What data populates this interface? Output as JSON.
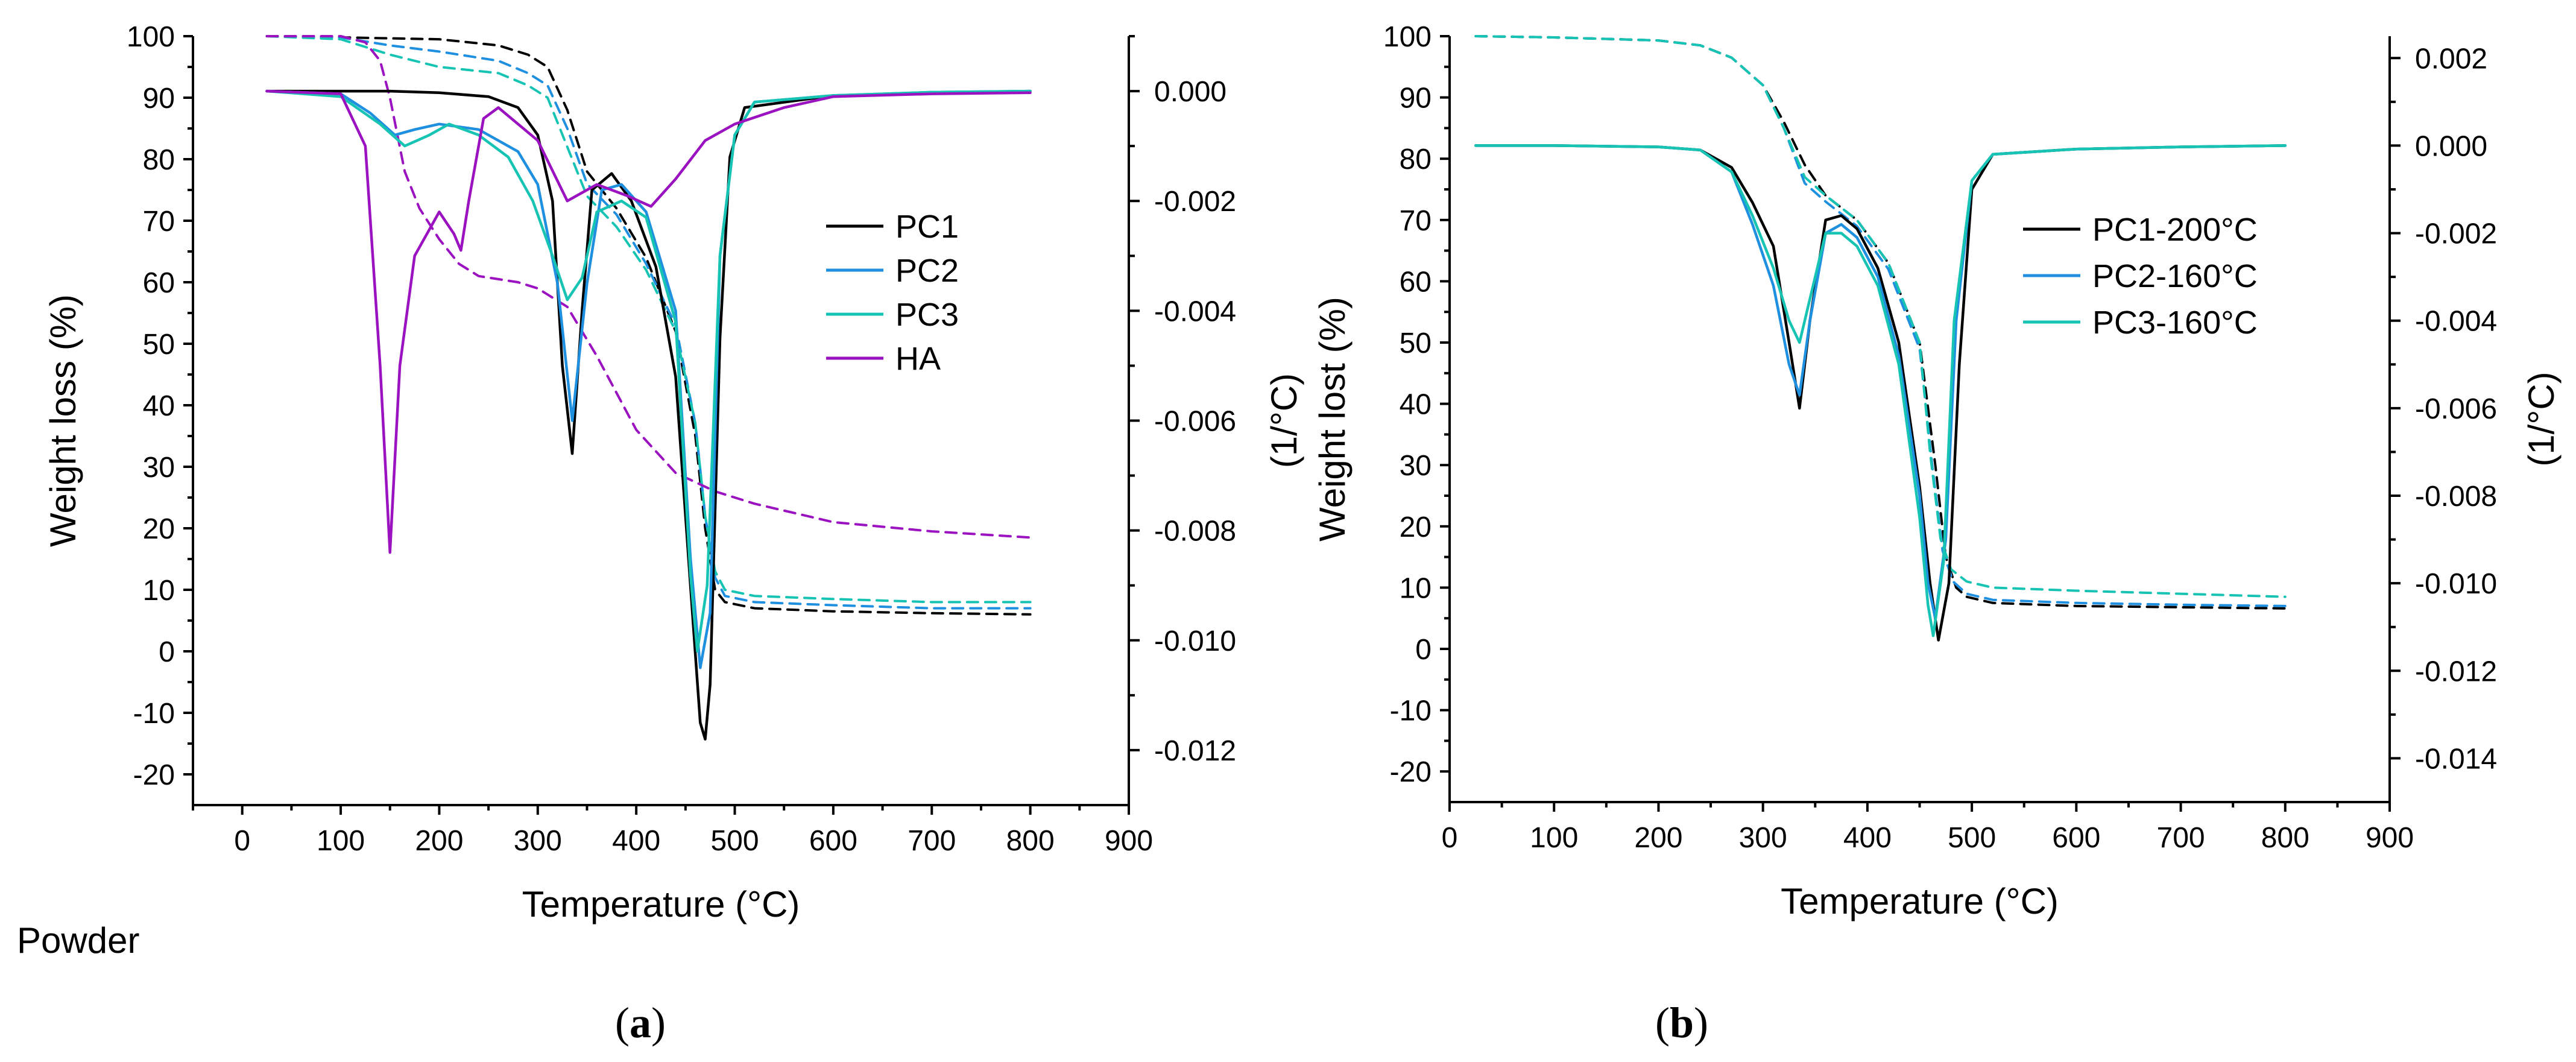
{
  "chart_data": [
    {
      "panel": "a",
      "type": "line",
      "xlabel": "Temperature (°C)",
      "ylabel_left": "Weight loss (%)",
      "ylabel_right": "(1/°C)",
      "xlim": [
        -50,
        900
      ],
      "xticks": [
        0,
        100,
        200,
        300,
        400,
        500,
        600,
        700,
        800,
        900
      ],
      "ylim_left": [
        -25,
        100
      ],
      "yticks_left": [
        -20,
        -10,
        0,
        10,
        20,
        30,
        40,
        50,
        60,
        70,
        80,
        90,
        100
      ],
      "ylim_right": [
        -0.013,
        0.001
      ],
      "yticks_right": [
        "-0.012",
        "-0.010",
        "-0.008",
        "-0.006",
        "-0.004",
        "-0.002",
        "0.000"
      ],
      "legend_position": "center-right",
      "annotation": "Powder",
      "panel_label": "a",
      "series": [
        {
          "name": "PC1",
          "color": "#000000",
          "kind": "weight",
          "style": "dashed",
          "x": [
            25,
            100,
            200,
            260,
            290,
            310,
            330,
            350,
            380,
            410,
            440,
            460,
            470,
            480,
            490,
            520,
            600,
            700,
            800
          ],
          "y": [
            100,
            99.8,
            99.5,
            98.5,
            97,
            95,
            88,
            78,
            72,
            64,
            52,
            35,
            20,
            10,
            8,
            7,
            6.5,
            6.2,
            6
          ]
        },
        {
          "name": "PC2",
          "color": "#1f8fe0",
          "kind": "weight",
          "style": "dashed",
          "x": [
            25,
            100,
            150,
            200,
            260,
            290,
            310,
            330,
            350,
            380,
            410,
            440,
            460,
            470,
            480,
            490,
            520,
            600,
            700,
            800
          ],
          "y": [
            100,
            99.8,
            98.5,
            97.5,
            96,
            94,
            92,
            85,
            76,
            71,
            63,
            53,
            37,
            22,
            12,
            9,
            8,
            7.5,
            7,
            7
          ]
        },
        {
          "name": "PC3",
          "color": "#17c4b4",
          "kind": "weight",
          "style": "dashed",
          "x": [
            25,
            100,
            150,
            200,
            260,
            290,
            310,
            330,
            350,
            380,
            410,
            440,
            460,
            470,
            480,
            490,
            520,
            600,
            700,
            800
          ],
          "y": [
            100,
            99.5,
            97,
            95,
            94,
            92,
            90,
            82,
            74,
            69,
            62,
            52,
            37,
            22,
            13,
            10,
            9,
            8.5,
            8,
            8
          ]
        },
        {
          "name": "HA",
          "color": "#9b12c0",
          "kind": "weight",
          "style": "dashed",
          "x": [
            25,
            100,
            125,
            140,
            150,
            165,
            180,
            200,
            220,
            240,
            260,
            280,
            300,
            330,
            360,
            400,
            440,
            480,
            520,
            600,
            700,
            800
          ],
          "y": [
            100,
            100,
            99,
            96,
            90,
            78,
            72,
            67,
            63,
            61,
            60.5,
            60,
            59,
            56,
            48,
            36,
            29,
            26,
            24,
            21,
            19.5,
            18.5
          ]
        },
        {
          "name": "PC1",
          "color": "#000000",
          "kind": "derivative",
          "style": "solid",
          "x": [
            25,
            100,
            150,
            200,
            250,
            280,
            300,
            315,
            325,
            335,
            345,
            355,
            375,
            395,
            420,
            440,
            455,
            465,
            470,
            475,
            485,
            495,
            510,
            600,
            700,
            800
          ],
          "y": [
            0,
            0,
            0,
            -3e-05,
            -0.0001,
            -0.0003,
            -0.0008,
            -0.002,
            -0.005,
            -0.0066,
            -0.004,
            -0.0018,
            -0.0015,
            -0.002,
            -0.0032,
            -0.0052,
            -0.009,
            -0.0115,
            -0.0118,
            -0.0108,
            -0.0045,
            -0.0012,
            -0.0003,
            -8e-05,
            -3e-05,
            0
          ]
        },
        {
          "name": "PC2",
          "color": "#1f8fe0",
          "kind": "derivative",
          "style": "solid",
          "x": [
            25,
            100,
            130,
            155,
            175,
            200,
            240,
            280,
            300,
            320,
            335,
            350,
            365,
            385,
            410,
            440,
            455,
            465,
            475,
            485,
            500,
            520,
            600,
            700,
            800
          ],
          "y": [
            0,
            -5e-05,
            -0.0004,
            -0.0008,
            -0.0007,
            -0.0006,
            -0.0007,
            -0.0011,
            -0.0017,
            -0.0035,
            -0.006,
            -0.0035,
            -0.0018,
            -0.0017,
            -0.0022,
            -0.004,
            -0.0085,
            -0.0105,
            -0.0095,
            -0.003,
            -0.0008,
            -0.0002,
            -8e-05,
            -2e-05,
            0
          ]
        },
        {
          "name": "PC3",
          "color": "#17c4b4",
          "kind": "derivative",
          "style": "solid",
          "x": [
            25,
            100,
            140,
            165,
            190,
            210,
            240,
            270,
            295,
            315,
            330,
            345,
            360,
            385,
            410,
            440,
            455,
            462,
            472,
            485,
            500,
            520,
            600,
            700,
            800
          ],
          "y": [
            0,
            -0.0001,
            -0.0006,
            -0.001,
            -0.0008,
            -0.0006,
            -0.0008,
            -0.0012,
            -0.002,
            -0.003,
            -0.0038,
            -0.0034,
            -0.0022,
            -0.002,
            -0.0023,
            -0.0042,
            -0.0088,
            -0.0102,
            -0.009,
            -0.003,
            -0.0008,
            -0.0002,
            -8e-05,
            -2e-05,
            0
          ]
        },
        {
          "name": "HA",
          "color": "#9b12c0",
          "kind": "derivative",
          "style": "solid",
          "x": [
            25,
            100,
            125,
            140,
            150,
            160,
            175,
            200,
            215,
            222,
            230,
            245,
            260,
            300,
            330,
            360,
            390,
            415,
            440,
            470,
            500,
            550,
            600,
            700,
            800
          ],
          "y": [
            0,
            -5e-05,
            -0.001,
            -0.005,
            -0.0084,
            -0.005,
            -0.003,
            -0.0022,
            -0.0026,
            -0.0029,
            -0.002,
            -0.0005,
            -0.0003,
            -0.0009,
            -0.002,
            -0.0017,
            -0.0019,
            -0.0021,
            -0.0016,
            -0.0009,
            -0.0006,
            -0.0003,
            -0.0001,
            -5e-05,
            -3e-05
          ]
        }
      ]
    },
    {
      "panel": "b",
      "type": "line",
      "xlabel": "Temperature (°C)",
      "ylabel_left": "Weight lost (%)",
      "ylabel_right": "(1/°C)",
      "xlim": [
        0,
        900
      ],
      "xticks": [
        0,
        100,
        200,
        300,
        400,
        500,
        600,
        700,
        800,
        900
      ],
      "ylim_left": [
        -25,
        100
      ],
      "yticks_left": [
        -20,
        -10,
        0,
        10,
        20,
        30,
        40,
        50,
        60,
        70,
        80,
        90,
        100
      ],
      "ylim_right": [
        -0.015,
        0.0025
      ],
      "yticks_right": [
        "-0.014",
        "-0.012",
        "-0.010",
        "-0.008",
        "-0.006",
        "-0.004",
        "-0.002",
        "0.000",
        "0.002"
      ],
      "legend_position": "center-right",
      "panel_label": "b",
      "series": [
        {
          "name": "PC1-200°C",
          "color": "#000000",
          "kind": "weight",
          "style": "dashed",
          "x": [
            25,
            100,
            200,
            240,
            270,
            300,
            320,
            340,
            360,
            390,
            420,
            450,
            465,
            475,
            485,
            495,
            520,
            600,
            700,
            800
          ],
          "y": [
            100,
            99.8,
            99.3,
            98.5,
            96.5,
            92,
            86,
            79,
            74,
            70,
            63,
            50,
            30,
            15,
            10,
            8.5,
            7.5,
            7,
            6.8,
            6.6
          ]
        },
        {
          "name": "PC2-160°C",
          "color": "#1f8fe0",
          "kind": "weight",
          "style": "dashed",
          "x": [
            25,
            100,
            200,
            240,
            270,
            300,
            320,
            340,
            360,
            390,
            420,
            450,
            462,
            472,
            482,
            495,
            520,
            600,
            700,
            800
          ],
          "y": [
            100,
            99.8,
            99.3,
            98.5,
            96.5,
            92,
            85,
            76,
            73,
            69,
            62,
            49,
            30,
            16,
            11,
            9,
            8,
            7.5,
            7.2,
            7
          ]
        },
        {
          "name": "PC3-160°C",
          "color": "#17c4b4",
          "kind": "weight",
          "style": "dashed",
          "x": [
            25,
            100,
            200,
            240,
            270,
            300,
            320,
            340,
            360,
            390,
            420,
            450,
            460,
            470,
            480,
            495,
            520,
            600,
            700,
            800
          ],
          "y": [
            100,
            99.8,
            99.3,
            98.5,
            96.5,
            92,
            85,
            77,
            74,
            70,
            63,
            50,
            32,
            18,
            13,
            11,
            10,
            9.5,
            9,
            8.5
          ]
        },
        {
          "name": "PC1-200°C",
          "color": "#000000",
          "kind": "derivative",
          "style": "solid",
          "x": [
            25,
            100,
            200,
            240,
            270,
            290,
            310,
            325,
            335,
            345,
            360,
            375,
            390,
            410,
            430,
            450,
            460,
            468,
            478,
            488,
            500,
            520,
            600,
            700,
            800
          ],
          "y": [
            0,
            0,
            -3e-05,
            -0.0001,
            -0.0005,
            -0.0013,
            -0.0023,
            -0.0045,
            -0.006,
            -0.004,
            -0.0017,
            -0.0016,
            -0.0019,
            -0.0028,
            -0.0045,
            -0.0078,
            -0.01,
            -0.0113,
            -0.01,
            -0.005,
            -0.001,
            -0.0002,
            -8e-05,
            -3e-05,
            0
          ]
        },
        {
          "name": "PC2-160°C",
          "color": "#1f8fe0",
          "kind": "derivative",
          "style": "solid",
          "x": [
            25,
            100,
            200,
            240,
            270,
            290,
            310,
            325,
            335,
            345,
            360,
            375,
            390,
            410,
            430,
            450,
            458,
            465,
            475,
            485,
            500,
            520,
            600,
            700,
            800
          ],
          "y": [
            0,
            0,
            -3e-05,
            -0.0001,
            -0.0006,
            -0.0018,
            -0.0032,
            -0.005,
            -0.0057,
            -0.004,
            -0.002,
            -0.0018,
            -0.0021,
            -0.003,
            -0.0048,
            -0.008,
            -0.01,
            -0.0108,
            -0.009,
            -0.004,
            -0.0008,
            -0.0002,
            -8e-05,
            -3e-05,
            0
          ]
        },
        {
          "name": "PC3-160°C",
          "color": "#17c4b4",
          "kind": "derivative",
          "style": "solid",
          "x": [
            25,
            100,
            200,
            240,
            270,
            290,
            310,
            325,
            335,
            345,
            360,
            375,
            390,
            410,
            430,
            450,
            458,
            463,
            473,
            483,
            500,
            520,
            600,
            700,
            800
          ],
          "y": [
            0,
            0,
            -3e-05,
            -0.0001,
            -0.0006,
            -0.0016,
            -0.0028,
            -0.004,
            -0.0045,
            -0.0035,
            -0.002,
            -0.002,
            -0.0023,
            -0.0032,
            -0.005,
            -0.0085,
            -0.0105,
            -0.0112,
            -0.0095,
            -0.004,
            -0.0008,
            -0.0002,
            -8e-05,
            -3e-05,
            0
          ]
        }
      ]
    }
  ]
}
